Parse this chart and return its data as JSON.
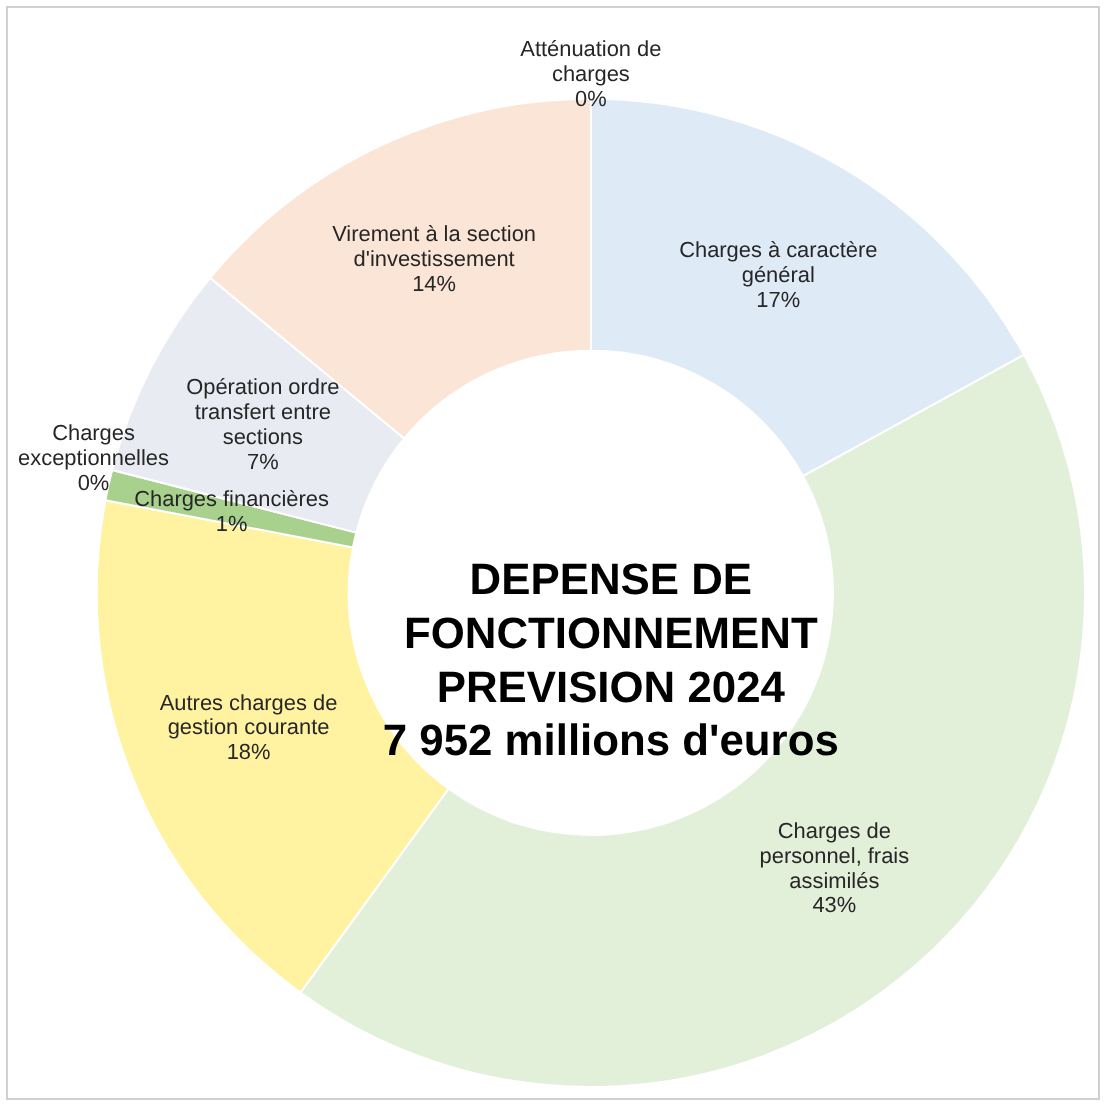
{
  "chart_data": {
    "type": "donut",
    "title": "DEPENSE DE\nFONCTIONNEMENT\nPREVISION 2024\n7 952 millions d'euros",
    "categories": [
      "Atténuation de charges",
      "Charges à caractère général",
      "Charges de personnel, frais assimilés",
      "Autres charges de gestion courante",
      "Charges financières",
      "Charges exceptionnelles",
      "Opération ordre transfert entre sections",
      "Virement à la section d'investissement"
    ],
    "values": [
      0,
      17,
      43,
      18,
      1,
      0,
      7,
      14
    ],
    "colors": [
      "#d9e2f3",
      "#deebf7",
      "#e2efd9",
      "#fff2a1",
      "#a9d18e",
      "#c9c9c9",
      "#e8ebf2",
      "#fbe5d6"
    ],
    "value_labels": [
      "0%",
      "17%",
      "43%",
      "18%",
      "1%",
      "0%",
      "7%",
      "14%"
    ],
    "legend": false
  }
}
